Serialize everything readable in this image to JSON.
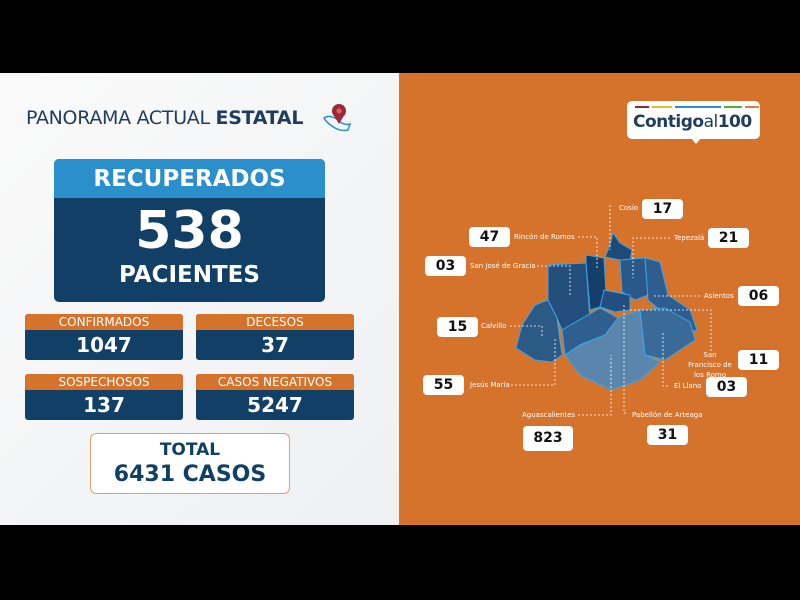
{
  "header": {
    "title_light": "PANORAMA ACTUAL",
    "title_bold": "ESTATAL",
    "icon": "mexico-map-pin-icon"
  },
  "recuperados": {
    "label": "RECUPERADOS",
    "value": "538",
    "unit": "PACIENTES"
  },
  "stats": [
    {
      "label": "CONFIRMADOS",
      "value": "1047"
    },
    {
      "label": "DECESOS",
      "value": "37"
    },
    {
      "label": "SOSPECHOSOS",
      "value": "137"
    },
    {
      "label": "CASOS NEGATIVOS",
      "value": "5247"
    }
  ],
  "total": {
    "label": "TOTAL",
    "value": "6431 CASOS"
  },
  "logo": {
    "text_bold": "Contigo",
    "text_light": "al",
    "text_num": "100"
  },
  "municipalities": [
    {
      "name": "Cosío",
      "value": "17"
    },
    {
      "name": "Rincón de Romos",
      "value": "47"
    },
    {
      "name": "Tepezalá",
      "value": "21"
    },
    {
      "name": "San José de Gracia",
      "value": "03"
    },
    {
      "name": "Asientos",
      "value": "06"
    },
    {
      "name": "Calvillo",
      "value": "15"
    },
    {
      "name": "San Francisco de los Romo",
      "value": "11"
    },
    {
      "name": "Jesús María",
      "value": "55"
    },
    {
      "name": "El Llano",
      "value": "03"
    },
    {
      "name": "Aguascalientes",
      "value": "823"
    },
    {
      "name": "Pabellón de Arteaga",
      "value": "31"
    }
  ],
  "colors": {
    "orange": "#d5722b",
    "navy": "#123f65",
    "blue": "#2a8fcb"
  }
}
